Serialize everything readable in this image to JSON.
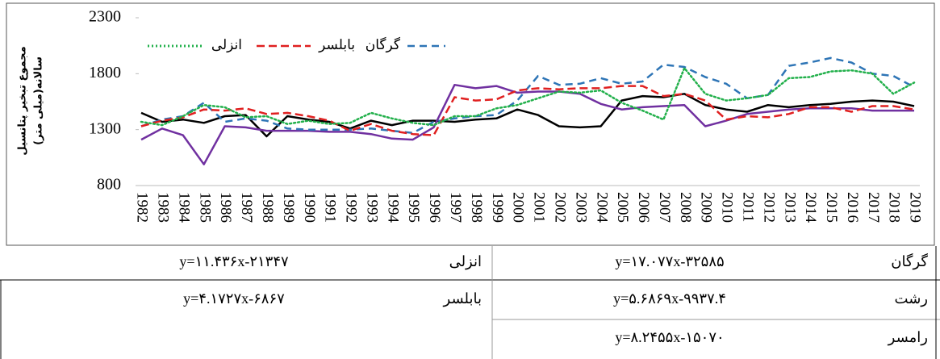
{
  "chart_data": {
    "type": "line",
    "ylabel": [
      "مجموع تبخیر پتانسیل",
      "سالانه(میلی متر)"
    ],
    "categories": [
      "1982",
      "1983",
      "1984",
      "1985",
      "1986",
      "1987",
      "1988",
      "1989",
      "1990",
      "1991",
      "1992",
      "1993",
      "1994",
      "1995",
      "1996",
      "1997",
      "1998",
      "1999",
      "2000",
      "2001",
      "2002",
      "2003",
      "2004",
      "2005",
      "2006",
      "2007",
      "2008",
      "2009",
      "2010",
      "2011",
      "2012",
      "2013",
      "2014",
      "2015",
      "2016",
      "2017",
      "2018",
      "2019"
    ],
    "ylim": [
      800,
      2300
    ],
    "yticks": [
      800,
      1300,
      1800,
      2300
    ],
    "series": [
      {
        "name": "گرگان",
        "color": "#2e75b6",
        "dash": "9,6",
        "values": [
          1330,
          1390,
          1420,
          1540,
          1370,
          1400,
          1380,
          1310,
          1300,
          1300,
          1300,
          1310,
          1290,
          1270,
          1370,
          1400,
          1420,
          1430,
          1560,
          1780,
          1700,
          1710,
          1760,
          1710,
          1730,
          1880,
          1860,
          1770,
          1710,
          1580,
          1610,
          1870,
          1900,
          1940,
          1900,
          1800,
          1780,
          1680
        ]
      },
      {
        "name": "بابلسر",
        "color": "#e02020",
        "dash": "10,5",
        "values": [
          1330,
          1380,
          1410,
          1480,
          1470,
          1490,
          1440,
          1450,
          1420,
          1380,
          1290,
          1350,
          1290,
          1260,
          1250,
          1590,
          1560,
          1570,
          1650,
          1670,
          1660,
          1670,
          1670,
          1690,
          1690,
          1600,
          1620,
          1560,
          1390,
          1420,
          1410,
          1440,
          1500,
          1500,
          1460,
          1510,
          1510,
          1480
        ]
      },
      {
        "name": "انزلی",
        "color": "#22b04b",
        "dash": "2,3",
        "values": [
          1370,
          1340,
          1420,
          1520,
          1500,
          1410,
          1420,
          1350,
          1380,
          1350,
          1360,
          1450,
          1400,
          1360,
          1340,
          1420,
          1420,
          1490,
          1520,
          1580,
          1640,
          1630,
          1650,
          1540,
          1470,
          1390,
          1850,
          1620,
          1560,
          1580,
          1610,
          1760,
          1770,
          1820,
          1830,
          1800,
          1620,
          1720
        ]
      },
      {
        "color": "#000000",
        "values": [
          1450,
          1370,
          1390,
          1360,
          1420,
          1430,
          1240,
          1420,
          1390,
          1370,
          1310,
          1380,
          1340,
          1380,
          1380,
          1370,
          1390,
          1400,
          1480,
          1430,
          1330,
          1320,
          1330,
          1560,
          1600,
          1590,
          1620,
          1520,
          1480,
          1460,
          1520,
          1500,
          1520,
          1530,
          1550,
          1560,
          1550,
          1510
        ]
      },
      {
        "color": "#7030a0",
        "values": [
          1210,
          1310,
          1250,
          990,
          1330,
          1320,
          1290,
          1290,
          1290,
          1280,
          1280,
          1260,
          1220,
          1210,
          1320,
          1700,
          1670,
          1690,
          1630,
          1640,
          1640,
          1620,
          1530,
          1480,
          1500,
          1510,
          1520,
          1330,
          1380,
          1440,
          1460,
          1480,
          1490,
          1490,
          1490,
          1470,
          1470,
          1470
        ]
      }
    ]
  },
  "table": {
    "rows": [
      [
        "y=۱۱.۴۳۶x-۲۱۳۴۷",
        "انزلی",
        "y=۱۷.۰۷۷x-۳۲۵۸۵",
        "گرگان"
      ],
      [
        "y=۴.۱۷۲۷x-۶۸۶۷",
        "بابلسر",
        "y=۵.۶۸۶۹x-۹۹۳۷.۴",
        "رشت"
      ],
      [
        "y=۸.۲۴۵۵x-۱۵۰۷۰",
        "رامسر"
      ]
    ]
  }
}
